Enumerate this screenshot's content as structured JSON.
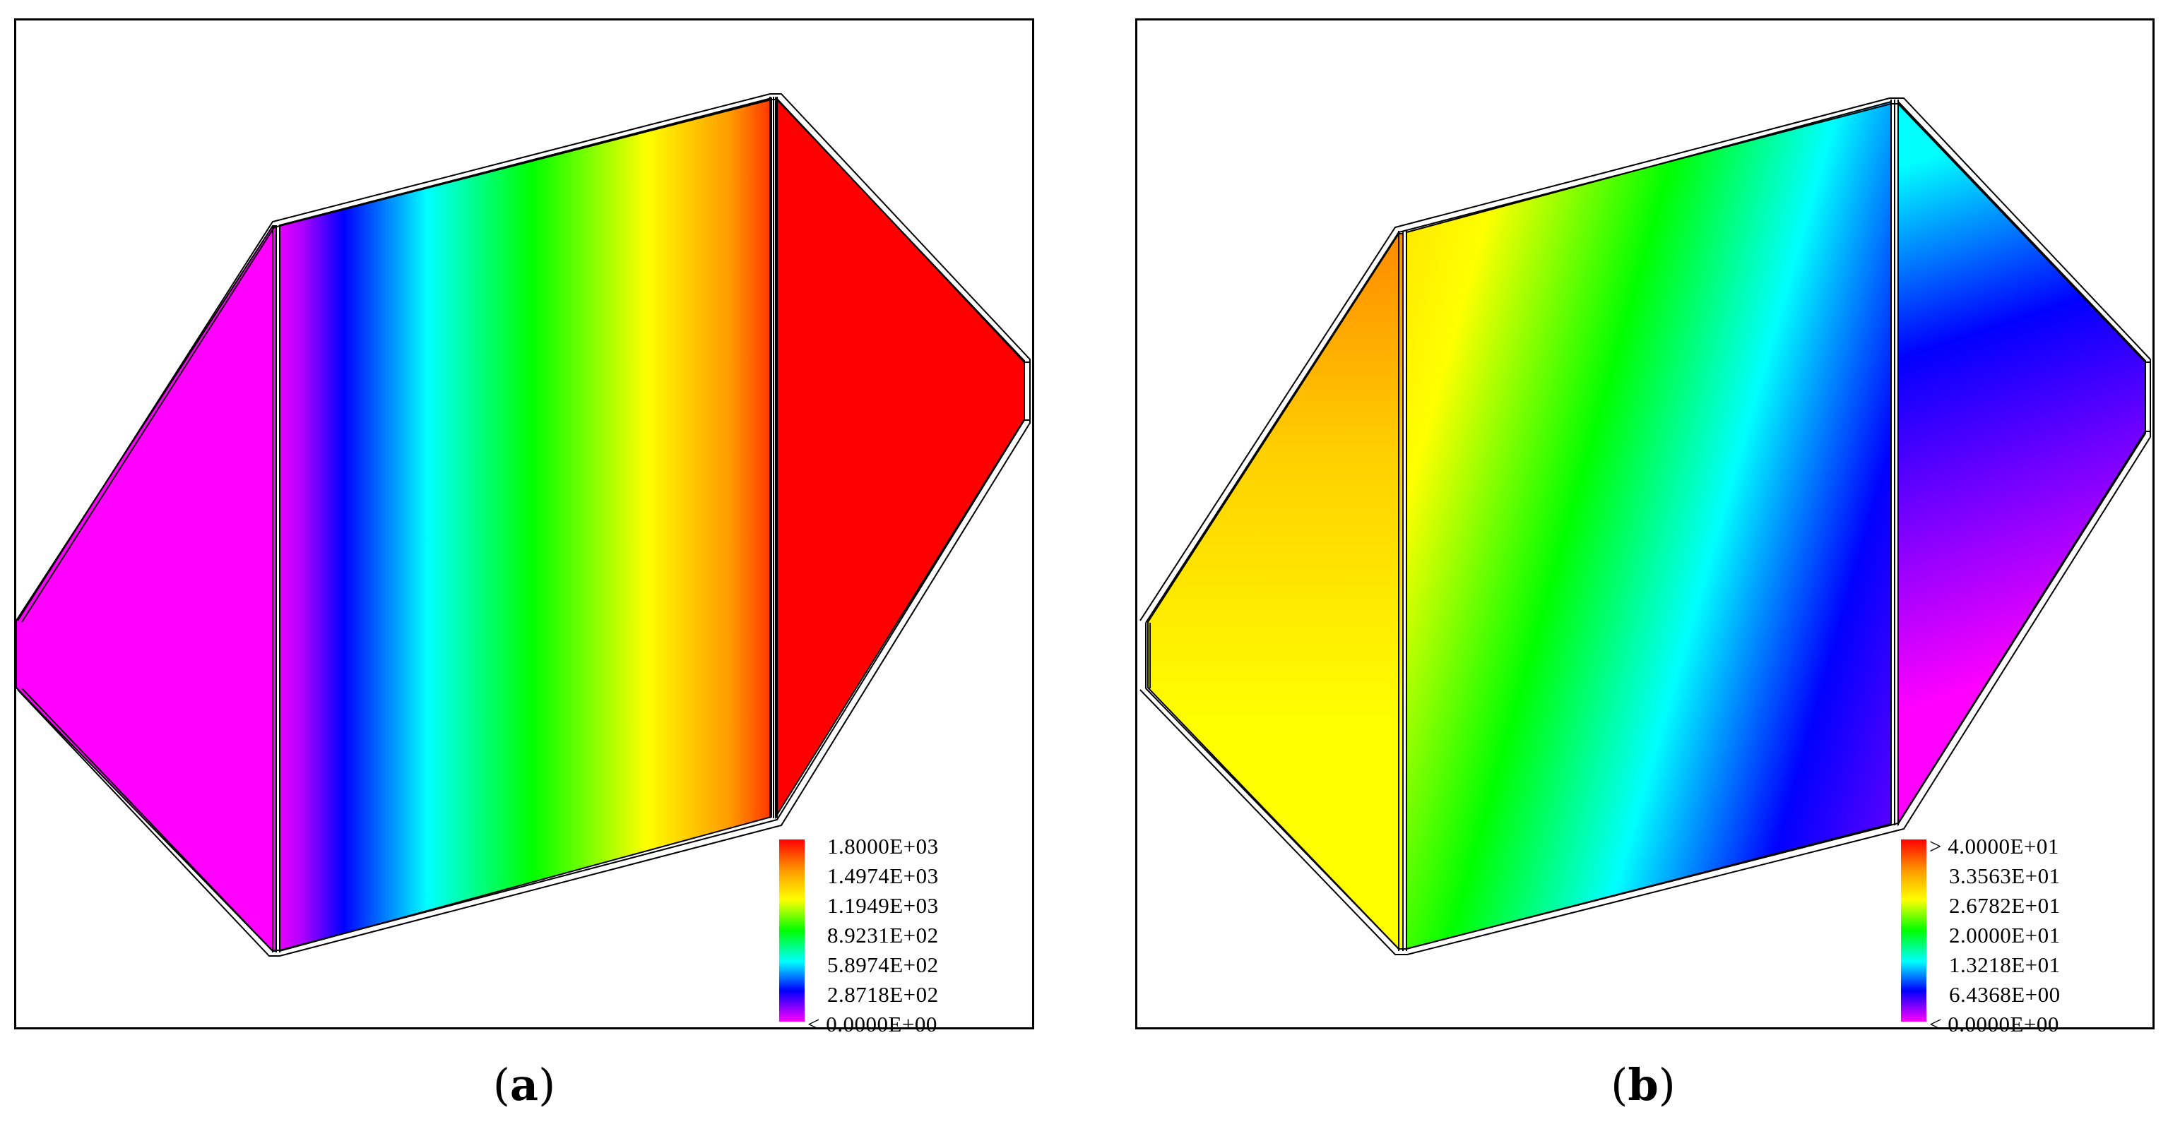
{
  "panels": [
    {
      "caption_letter": "a",
      "legend": {
        "labels": [
          "1.8000E+03",
          "1.4974E+03",
          "1.1949E+03",
          "8.9231E+02",
          "5.8974E+02",
          "2.8718E+02",
          "< 0.0000E+00"
        ],
        "colors": [
          "#ff0000",
          "#ff9900",
          "#ffff00",
          "#00ff00",
          "#00ffff",
          "#0000ff",
          "#ff00ff"
        ]
      }
    },
    {
      "caption_letter": "b",
      "legend": {
        "labels": [
          "> 4.0000E+01",
          "3.3563E+01",
          "2.6782E+01",
          "2.0000E+01",
          "1.3218E+01",
          "6.4368E+00",
          "< 0.0000E+00"
        ],
        "colors": [
          "#ff0000",
          "#ff9900",
          "#ffff00",
          "#00ff00",
          "#00ffff",
          "#0000ff",
          "#ff00ff"
        ]
      }
    }
  ]
}
